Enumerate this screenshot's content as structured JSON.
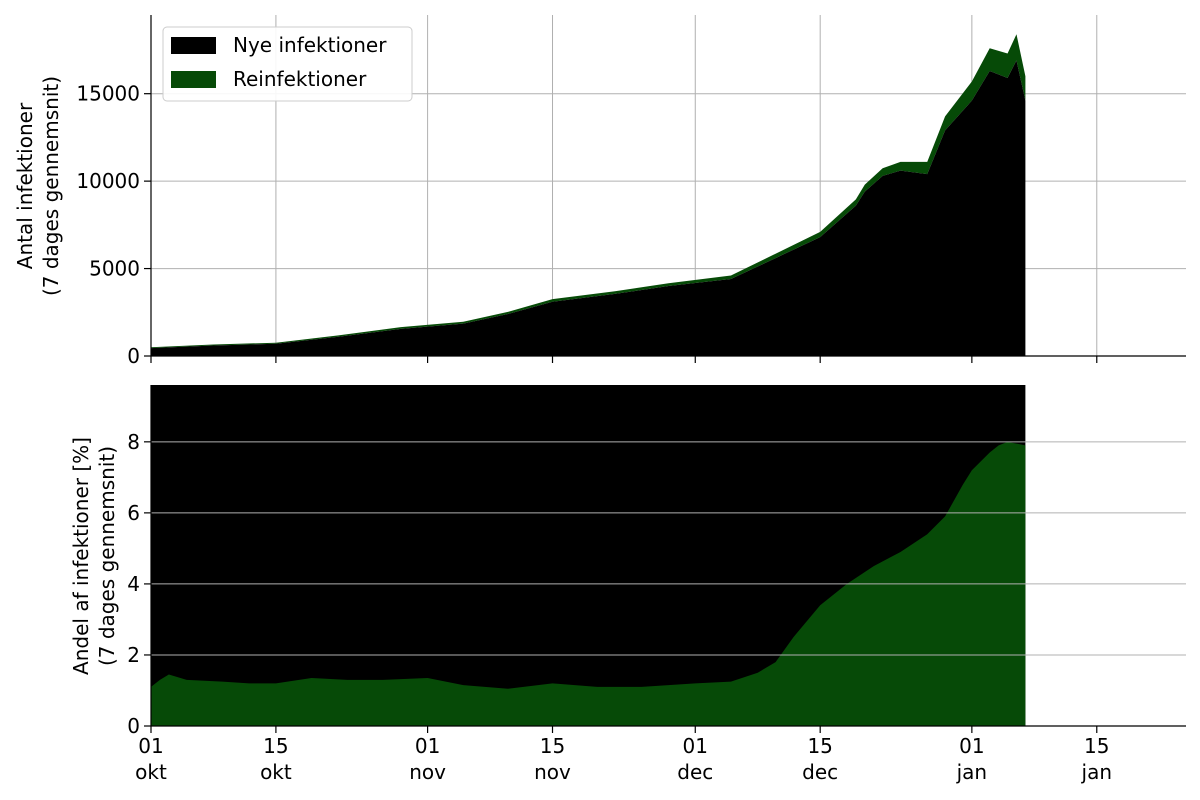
{
  "chart_data": [
    {
      "type": "area",
      "stacked": true,
      "ylabel_line1": "Antal infektioner",
      "ylabel_line2": "(7 dages gennemsnit)",
      "ylim": [
        0,
        19500
      ],
      "yticks": [
        0,
        5000,
        10000,
        15000
      ],
      "ytick_labels": [
        "0",
        "5000",
        "10000",
        "15000"
      ],
      "grid": true,
      "legend_position": "top-left",
      "series": [
        {
          "name": "Nye infektioner",
          "color": "#000000",
          "x": [
            "2021-10-01",
            "2021-10-08",
            "2021-10-15",
            "2021-10-22",
            "2021-10-29",
            "2021-11-05",
            "2021-11-10",
            "2021-11-15",
            "2021-11-22",
            "2021-11-28",
            "2021-12-05",
            "2021-12-10",
            "2021-12-15",
            "2021-12-17",
            "2021-12-19",
            "2021-12-20",
            "2021-12-22",
            "2021-12-24",
            "2021-12-27",
            "2021-12-29",
            "2022-01-01",
            "2022-01-03",
            "2022-01-05",
            "2022-01-06",
            "2022-01-07"
          ],
          "values": [
            450,
            600,
            700,
            1100,
            1550,
            1850,
            2400,
            3100,
            3550,
            4000,
            4400,
            5600,
            6800,
            7700,
            8600,
            9400,
            10300,
            10600,
            10400,
            12900,
            14600,
            16300,
            15900,
            16900,
            14600
          ]
        },
        {
          "name": "Reinfektioner",
          "color": "#064a07",
          "x": [
            "2021-10-01",
            "2021-10-08",
            "2021-10-15",
            "2021-10-22",
            "2021-10-29",
            "2021-11-05",
            "2021-11-10",
            "2021-11-15",
            "2021-11-22",
            "2021-11-28",
            "2021-12-05",
            "2021-12-10",
            "2021-12-15",
            "2021-12-17",
            "2021-12-19",
            "2021-12-20",
            "2021-12-22",
            "2021-12-24",
            "2021-12-27",
            "2021-12-29",
            "2022-01-01",
            "2022-01-03",
            "2022-01-05",
            "2022-01-06",
            "2022-01-07"
          ],
          "values": [
            50,
            60,
            60,
            80,
            100,
            110,
            120,
            150,
            150,
            160,
            200,
            250,
            300,
            330,
            360,
            400,
            440,
            500,
            700,
            800,
            1100,
            1300,
            1400,
            1500,
            1400
          ]
        }
      ],
      "xlim": [
        "2021-10-01",
        "2022-01-25"
      ]
    },
    {
      "type": "area",
      "stacked": true,
      "ylabel_line1": "Andel af infektioner [%]",
      "ylabel_line2": "(7 dages gennemsnit)",
      "ylim": [
        0,
        9.6
      ],
      "yticks": [
        0,
        2,
        4,
        6,
        8
      ],
      "ytick_labels": [
        "0",
        "2",
        "4",
        "6",
        "8"
      ],
      "grid": true,
      "background_series_color": "#000000",
      "x": [
        "2021-10-01",
        "2021-10-02",
        "2021-10-03",
        "2021-10-05",
        "2021-10-09",
        "2021-10-12",
        "2021-10-15",
        "2021-10-19",
        "2021-10-23",
        "2021-10-27",
        "2021-11-01",
        "2021-11-05",
        "2021-11-10",
        "2021-11-15",
        "2021-11-20",
        "2021-11-25",
        "2021-11-28",
        "2021-12-01",
        "2021-12-05",
        "2021-12-08",
        "2021-12-10",
        "2021-12-12",
        "2021-12-15",
        "2021-12-18",
        "2021-12-21",
        "2021-12-24",
        "2021-12-27",
        "2021-12-29",
        "2021-12-31",
        "2022-01-01",
        "2022-01-03",
        "2022-01-04",
        "2022-01-05",
        "2022-01-07"
      ],
      "series": [
        {
          "name": "Reinfektioner",
          "color": "#064a07",
          "values": [
            1.1,
            1.3,
            1.45,
            1.3,
            1.25,
            1.2,
            1.2,
            1.35,
            1.3,
            1.3,
            1.35,
            1.15,
            1.05,
            1.2,
            1.1,
            1.1,
            1.15,
            1.2,
            1.25,
            1.5,
            1.8,
            2.5,
            3.4,
            4.0,
            4.5,
            4.9,
            5.4,
            5.9,
            6.8,
            7.2,
            7.7,
            7.9,
            8.0,
            7.9
          ]
        }
      ],
      "xlim": [
        "2021-10-01",
        "2022-01-25"
      ]
    }
  ],
  "xaxis": {
    "ticks": [
      {
        "date": "2021-10-01",
        "day": "01",
        "month": "okt"
      },
      {
        "date": "2021-10-15",
        "day": "15",
        "month": "okt"
      },
      {
        "date": "2021-11-01",
        "day": "01",
        "month": "nov"
      },
      {
        "date": "2021-11-15",
        "day": "15",
        "month": "nov"
      },
      {
        "date": "2021-12-01",
        "day": "01",
        "month": "dec"
      },
      {
        "date": "2021-12-15",
        "day": "15",
        "month": "dec"
      },
      {
        "date": "2022-01-01",
        "day": "01",
        "month": "jan"
      },
      {
        "date": "2022-01-15",
        "day": "15",
        "month": "jan"
      }
    ]
  },
  "legend": [
    {
      "label": "Nye infektioner",
      "color": "#000000"
    },
    {
      "label": "Reinfektioner",
      "color": "#064a07"
    }
  ]
}
